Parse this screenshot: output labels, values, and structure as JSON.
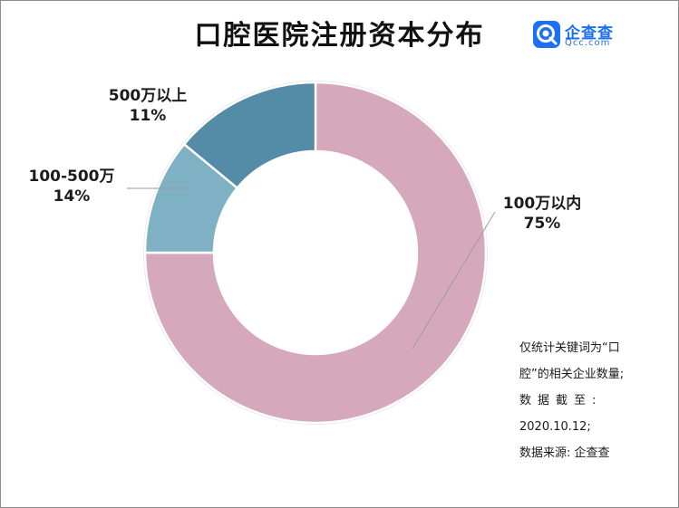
{
  "title": "口腔医院注册资本分布",
  "logo": {
    "name": "企查查",
    "domain": "Qcc.com"
  },
  "colors": {
    "slice_0": "#d5a8bc",
    "slice_1": "#7eb1c4",
    "slice_2": "#548ba6",
    "background": "#ffffff"
  },
  "chart_data": {
    "type": "pie",
    "variant": "donut",
    "title": "口腔医院注册资本分布",
    "slices": [
      {
        "label": "100万以内",
        "pct_label": "75%",
        "value": 75
      },
      {
        "label": "500万以上",
        "pct_label": "11%",
        "value": 11
      },
      {
        "label": "100-500万",
        "pct_label": "14%",
        "value": 14
      }
    ]
  },
  "note": {
    "line1": "仅统计关键词为“口",
    "line2": "腔”的相关企业数量;",
    "line3": "数据截至:",
    "line4": "2020.10.12;",
    "line5": "数据来源: 企查查"
  }
}
